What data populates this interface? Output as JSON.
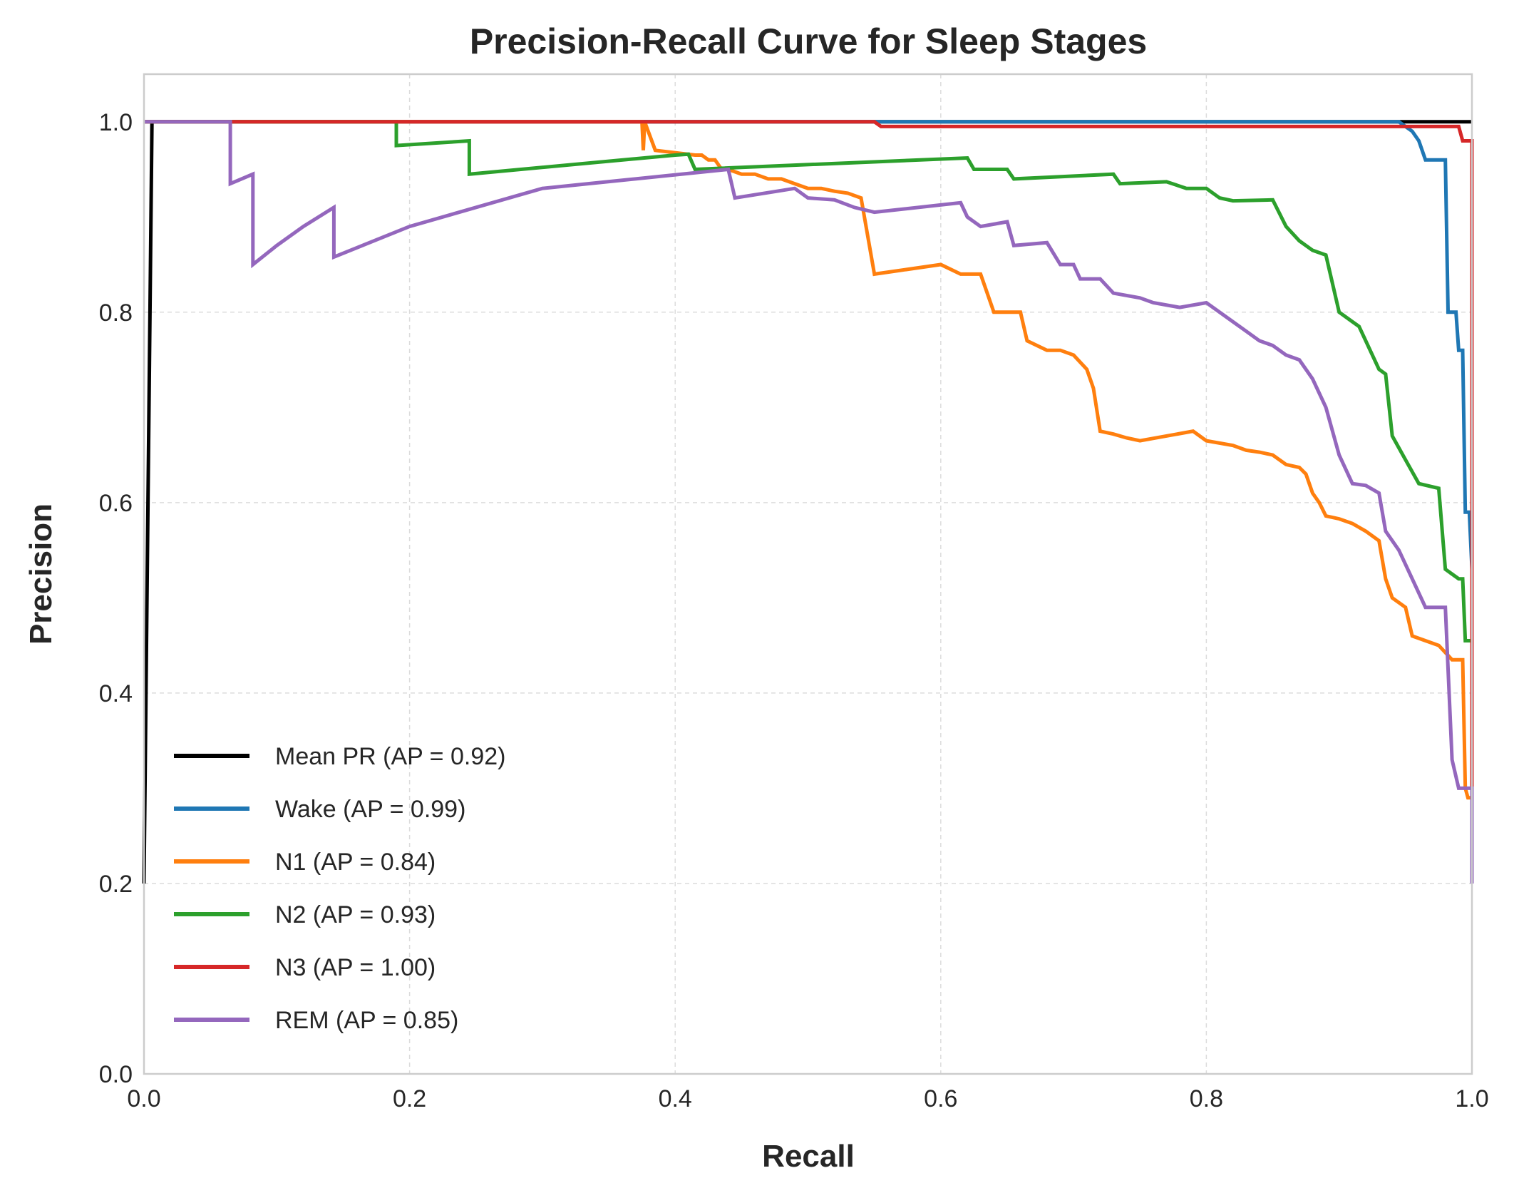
{
  "chart_data": {
    "type": "line",
    "title": "Precision-Recall Curve for Sleep Stages",
    "xlabel": "Recall",
    "ylabel": "Precision",
    "xlim": [
      0,
      1
    ],
    "ylim": [
      0,
      1.05
    ],
    "xticks": [
      "0.0",
      "0.2",
      "0.4",
      "0.6",
      "0.8",
      "1.0"
    ],
    "yticks": [
      "0.0",
      "0.2",
      "0.4",
      "0.6",
      "0.8",
      "1.0"
    ],
    "grid": true,
    "legend_position": "lower-left",
    "series": [
      {
        "name": "Mean PR (AP = 0.92)",
        "color": "#000000",
        "points": [
          [
            0.0,
            0.2
          ],
          [
            0.006,
            1.0
          ],
          [
            1.0,
            1.0
          ]
        ]
      },
      {
        "name": "Wake (AP = 0.99)",
        "color": "#1f77b4",
        "points": [
          [
            0.0,
            1.0
          ],
          [
            0.945,
            1.0
          ],
          [
            0.955,
            0.99
          ],
          [
            0.96,
            0.98
          ],
          [
            0.965,
            0.96
          ],
          [
            0.98,
            0.96
          ],
          [
            0.982,
            0.8
          ],
          [
            0.988,
            0.8
          ],
          [
            0.99,
            0.76
          ],
          [
            0.993,
            0.76
          ],
          [
            0.995,
            0.59
          ],
          [
            0.998,
            0.59
          ],
          [
            1.0,
            0.53
          ]
        ]
      },
      {
        "name": "N1 (AP = 0.84)",
        "color": "#ff7f0e",
        "points": [
          [
            0.0,
            1.0
          ],
          [
            0.375,
            1.0
          ],
          [
            0.376,
            0.97
          ],
          [
            0.377,
            1.0
          ],
          [
            0.385,
            0.97
          ],
          [
            0.415,
            0.965
          ],
          [
            0.42,
            0.965
          ],
          [
            0.425,
            0.96
          ],
          [
            0.43,
            0.96
          ],
          [
            0.435,
            0.95
          ],
          [
            0.44,
            0.95
          ],
          [
            0.45,
            0.945
          ],
          [
            0.46,
            0.945
          ],
          [
            0.47,
            0.94
          ],
          [
            0.48,
            0.94
          ],
          [
            0.49,
            0.935
          ],
          [
            0.5,
            0.93
          ],
          [
            0.51,
            0.93
          ],
          [
            0.52,
            0.927
          ],
          [
            0.53,
            0.925
          ],
          [
            0.54,
            0.92
          ],
          [
            0.55,
            0.84
          ],
          [
            0.6,
            0.85
          ],
          [
            0.615,
            0.84
          ],
          [
            0.63,
            0.84
          ],
          [
            0.64,
            0.8
          ],
          [
            0.66,
            0.8
          ],
          [
            0.665,
            0.77
          ],
          [
            0.68,
            0.76
          ],
          [
            0.69,
            0.76
          ],
          [
            0.7,
            0.755
          ],
          [
            0.71,
            0.74
          ],
          [
            0.715,
            0.72
          ],
          [
            0.72,
            0.675
          ],
          [
            0.73,
            0.672
          ],
          [
            0.74,
            0.668
          ],
          [
            0.75,
            0.665
          ],
          [
            0.79,
            0.675
          ],
          [
            0.8,
            0.665
          ],
          [
            0.82,
            0.66
          ],
          [
            0.83,
            0.655
          ],
          [
            0.84,
            0.653
          ],
          [
            0.85,
            0.65
          ],
          [
            0.86,
            0.64
          ],
          [
            0.87,
            0.637
          ],
          [
            0.875,
            0.63
          ],
          [
            0.88,
            0.61
          ],
          [
            0.885,
            0.6
          ],
          [
            0.89,
            0.586
          ],
          [
            0.9,
            0.583
          ],
          [
            0.91,
            0.578
          ],
          [
            0.92,
            0.57
          ],
          [
            0.93,
            0.56
          ],
          [
            0.935,
            0.52
          ],
          [
            0.94,
            0.5
          ],
          [
            0.95,
            0.49
          ],
          [
            0.955,
            0.46
          ],
          [
            0.965,
            0.455
          ],
          [
            0.975,
            0.45
          ],
          [
            0.985,
            0.435
          ],
          [
            0.993,
            0.435
          ],
          [
            0.995,
            0.3
          ],
          [
            0.997,
            0.29
          ],
          [
            1.0,
            0.29
          ]
        ]
      },
      {
        "name": "N2 (AP = 0.93)",
        "color": "#2ca02c",
        "points": [
          [
            0.0,
            1.0
          ],
          [
            0.19,
            1.0
          ],
          [
            0.19,
            0.975
          ],
          [
            0.245,
            0.98
          ],
          [
            0.245,
            0.945
          ],
          [
            0.4,
            0.965
          ],
          [
            0.41,
            0.966
          ],
          [
            0.415,
            0.95
          ],
          [
            0.62,
            0.962
          ],
          [
            0.625,
            0.95
          ],
          [
            0.65,
            0.95
          ],
          [
            0.655,
            0.94
          ],
          [
            0.73,
            0.945
          ],
          [
            0.735,
            0.935
          ],
          [
            0.77,
            0.937
          ],
          [
            0.785,
            0.93
          ],
          [
            0.8,
            0.93
          ],
          [
            0.81,
            0.92
          ],
          [
            0.82,
            0.917
          ],
          [
            0.85,
            0.918
          ],
          [
            0.86,
            0.89
          ],
          [
            0.87,
            0.875
          ],
          [
            0.88,
            0.865
          ],
          [
            0.89,
            0.86
          ],
          [
            0.9,
            0.8
          ],
          [
            0.91,
            0.79
          ],
          [
            0.915,
            0.785
          ],
          [
            0.92,
            0.77
          ],
          [
            0.93,
            0.74
          ],
          [
            0.935,
            0.735
          ],
          [
            0.94,
            0.67
          ],
          [
            0.95,
            0.645
          ],
          [
            0.96,
            0.62
          ],
          [
            0.975,
            0.615
          ],
          [
            0.98,
            0.53
          ],
          [
            0.99,
            0.52
          ],
          [
            0.993,
            0.52
          ],
          [
            0.995,
            0.455
          ],
          [
            1.0,
            0.455
          ]
        ]
      },
      {
        "name": "N3 (AP = 1.00)",
        "color": "#d62728",
        "points": [
          [
            0.0,
            1.0
          ],
          [
            0.55,
            1.0
          ],
          [
            0.555,
            0.995
          ],
          [
            0.99,
            0.995
          ],
          [
            0.993,
            0.98
          ],
          [
            1.0,
            0.98
          ],
          [
            1.0,
            0.2
          ]
        ]
      },
      {
        "name": "REM (AP = 0.85)",
        "color": "#9467bd",
        "points": [
          [
            0.0,
            1.0
          ],
          [
            0.065,
            1.0
          ],
          [
            0.065,
            0.935
          ],
          [
            0.082,
            0.945
          ],
          [
            0.082,
            0.85
          ],
          [
            0.1,
            0.87
          ],
          [
            0.12,
            0.89
          ],
          [
            0.143,
            0.91
          ],
          [
            0.143,
            0.858
          ],
          [
            0.2,
            0.89
          ],
          [
            0.3,
            0.93
          ],
          [
            0.44,
            0.95
          ],
          [
            0.445,
            0.92
          ],
          [
            0.49,
            0.93
          ],
          [
            0.5,
            0.92
          ],
          [
            0.52,
            0.918
          ],
          [
            0.535,
            0.91
          ],
          [
            0.55,
            0.905
          ],
          [
            0.615,
            0.915
          ],
          [
            0.62,
            0.9
          ],
          [
            0.63,
            0.89
          ],
          [
            0.65,
            0.895
          ],
          [
            0.655,
            0.87
          ],
          [
            0.68,
            0.873
          ],
          [
            0.69,
            0.85
          ],
          [
            0.7,
            0.85
          ],
          [
            0.705,
            0.835
          ],
          [
            0.72,
            0.835
          ],
          [
            0.73,
            0.82
          ],
          [
            0.75,
            0.815
          ],
          [
            0.76,
            0.81
          ],
          [
            0.78,
            0.805
          ],
          [
            0.8,
            0.81
          ],
          [
            0.82,
            0.79
          ],
          [
            0.83,
            0.78
          ],
          [
            0.84,
            0.77
          ],
          [
            0.85,
            0.765
          ],
          [
            0.86,
            0.755
          ],
          [
            0.87,
            0.75
          ],
          [
            0.88,
            0.73
          ],
          [
            0.89,
            0.7
          ],
          [
            0.9,
            0.65
          ],
          [
            0.91,
            0.62
          ],
          [
            0.92,
            0.618
          ],
          [
            0.93,
            0.61
          ],
          [
            0.935,
            0.57
          ],
          [
            0.945,
            0.55
          ],
          [
            0.955,
            0.52
          ],
          [
            0.965,
            0.49
          ],
          [
            0.98,
            0.49
          ],
          [
            0.985,
            0.33
          ],
          [
            0.99,
            0.3
          ],
          [
            1.0,
            0.3
          ],
          [
            1.0,
            0.2
          ]
        ]
      }
    ]
  }
}
